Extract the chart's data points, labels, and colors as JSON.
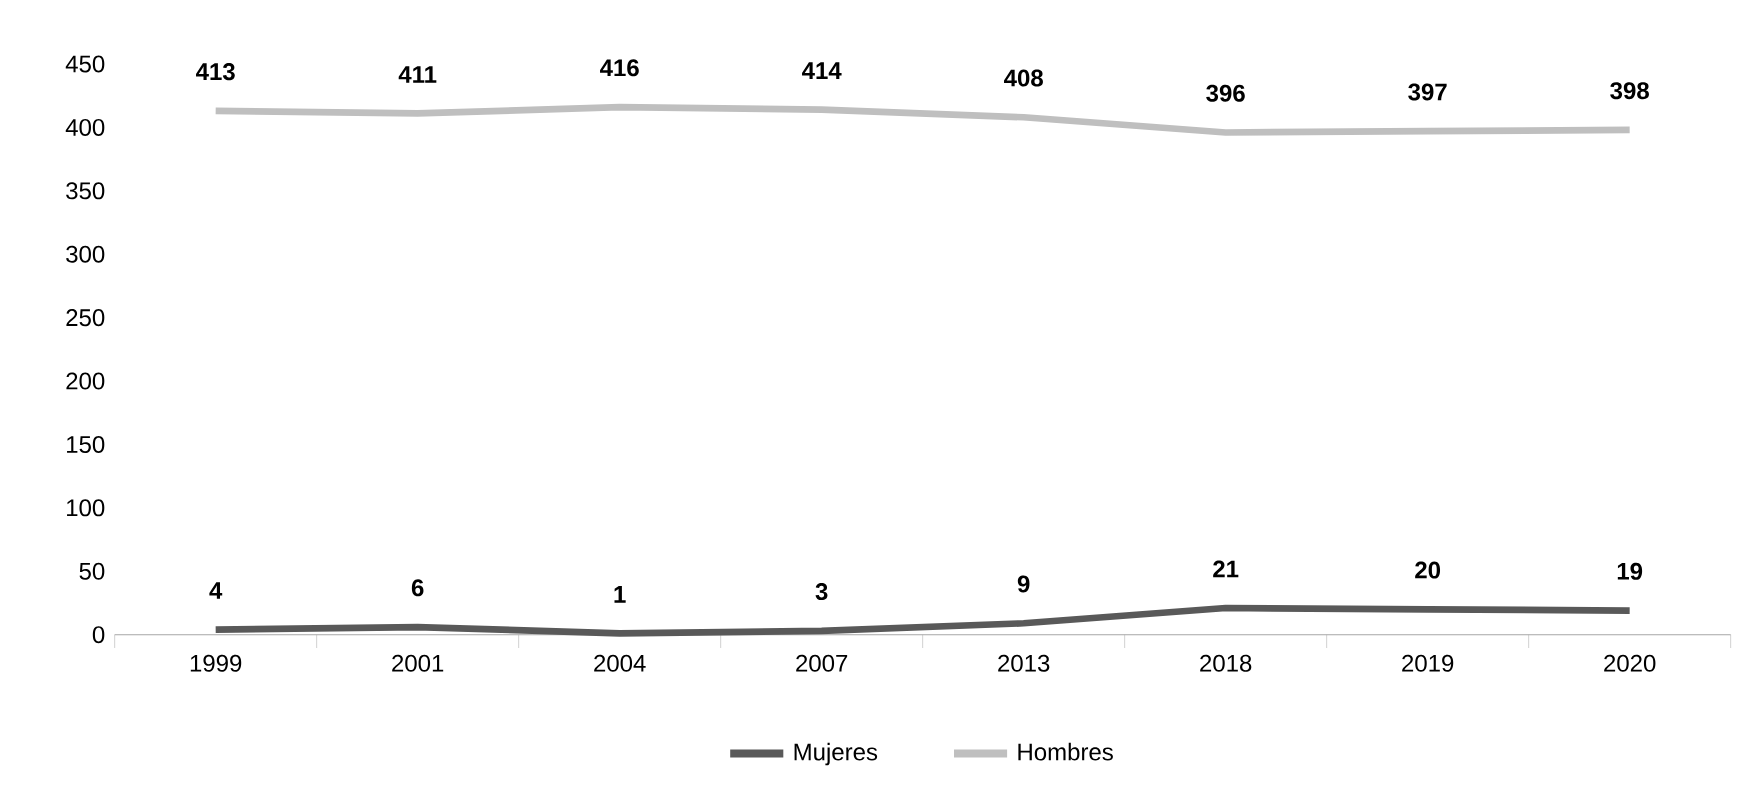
{
  "chart_data": {
    "type": "line",
    "categories": [
      "1999",
      "2001",
      "2004",
      "2007",
      "2013",
      "2018",
      "2019",
      "2020"
    ],
    "series": [
      {
        "name": "Mujeres",
        "color": "#595959",
        "values": [
          4,
          6,
          1,
          3,
          9,
          21,
          20,
          19
        ]
      },
      {
        "name": "Hombres",
        "color": "#bfbfbf",
        "values": [
          413,
          411,
          416,
          414,
          408,
          396,
          397,
          398
        ]
      }
    ],
    "ylim": [
      0,
      450
    ],
    "yticks": [
      0,
      50,
      100,
      150,
      200,
      250,
      300,
      350,
      400,
      450
    ],
    "data_labels": true,
    "legend": "bottom",
    "marker": "none",
    "grid": false
  }
}
